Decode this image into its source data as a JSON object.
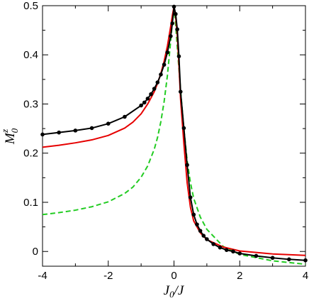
{
  "chart_data": {
    "type": "line",
    "xlabel": "J",
    "xlabel_sub": "0",
    "xlabel_tail": "/J",
    "ylabel": "M",
    "ylabel_sub": "0",
    "ylabel_sup": "z",
    "xlim": [
      -4,
      4
    ],
    "ylim": [
      -0.03,
      0.5
    ],
    "xticks": [
      -4,
      -2,
      0,
      2,
      4
    ],
    "yticks": [
      0,
      0.1,
      0.2,
      0.3,
      0.4,
      0.5
    ],
    "xtick_labels": [
      "-4",
      "-2",
      "0",
      "2",
      "4"
    ],
    "ytick_labels": [
      "0",
      "0.1",
      "0.2",
      "0.3",
      "0.4",
      "0.5"
    ],
    "grid": false,
    "series": [
      {
        "color": "#000000",
        "style": "solid-markers",
        "x": [
          -4.0,
          -3.5,
          -3.0,
          -2.5,
          -2.0,
          -1.5,
          -1.0,
          -0.9,
          -0.8,
          -0.7,
          -0.6,
          -0.5,
          -0.4,
          -0.3,
          -0.2,
          -0.1,
          -0.05,
          0.0,
          0.05,
          0.1,
          0.15,
          0.2,
          0.3,
          0.4,
          0.5,
          0.6,
          0.7,
          0.8,
          0.9,
          1.0,
          1.2,
          1.4,
          1.6,
          1.8,
          2.0,
          2.5,
          3.0,
          3.5,
          4.0
        ],
        "y": [
          0.238,
          0.242,
          0.246,
          0.251,
          0.26,
          0.274,
          0.297,
          0.303,
          0.311,
          0.32,
          0.331,
          0.344,
          0.36,
          0.38,
          0.405,
          0.438,
          0.464,
          0.498,
          0.483,
          0.452,
          0.397,
          0.325,
          0.251,
          0.176,
          0.11,
          0.075,
          0.055,
          0.042,
          0.032,
          0.025,
          0.015,
          0.008,
          0.003,
          0.0,
          -0.004,
          -0.009,
          -0.013,
          -0.016,
          -0.018
        ]
      },
      {
        "color": "#e60000",
        "style": "solid",
        "x": [
          -4.0,
          -3.5,
          -3.0,
          -2.5,
          -2.0,
          -1.5,
          -1.25,
          -1.0,
          -0.8,
          -0.6,
          -0.5,
          -0.4,
          -0.3,
          -0.2,
          -0.1,
          -0.05,
          0.0,
          0.05,
          0.1,
          0.15,
          0.2,
          0.3,
          0.4,
          0.5,
          0.6,
          0.8,
          1.0,
          1.5,
          2.0,
          3.0,
          4.0
        ],
        "y": [
          0.212,
          0.216,
          0.221,
          0.227,
          0.236,
          0.251,
          0.263,
          0.28,
          0.3,
          0.325,
          0.342,
          0.362,
          0.387,
          0.418,
          0.458,
          0.48,
          0.498,
          0.478,
          0.44,
          0.38,
          0.31,
          0.22,
          0.14,
          0.09,
          0.062,
          0.038,
          0.024,
          0.009,
          0.001,
          -0.005,
          -0.008
        ]
      },
      {
        "color": "#22cc22",
        "style": "dashed",
        "x": [
          -4.0,
          -3.5,
          -3.0,
          -2.5,
          -2.0,
          -1.5,
          -1.25,
          -1.0,
          -0.8,
          -0.6,
          -0.5,
          -0.4,
          -0.3,
          -0.2,
          -0.1,
          -0.05,
          0.0,
          0.05,
          0.1,
          0.2,
          0.3,
          0.4,
          0.5,
          0.6,
          0.8,
          1.0,
          1.5,
          2.0,
          3.0,
          4.0
        ],
        "y": [
          0.075,
          0.079,
          0.084,
          0.091,
          0.101,
          0.118,
          0.131,
          0.151,
          0.174,
          0.208,
          0.232,
          0.264,
          0.305,
          0.358,
          0.428,
          0.466,
          0.496,
          0.462,
          0.415,
          0.328,
          0.25,
          0.185,
          0.14,
          0.108,
          0.07,
          0.045,
          0.01,
          -0.006,
          -0.019,
          -0.026
        ]
      }
    ]
  }
}
